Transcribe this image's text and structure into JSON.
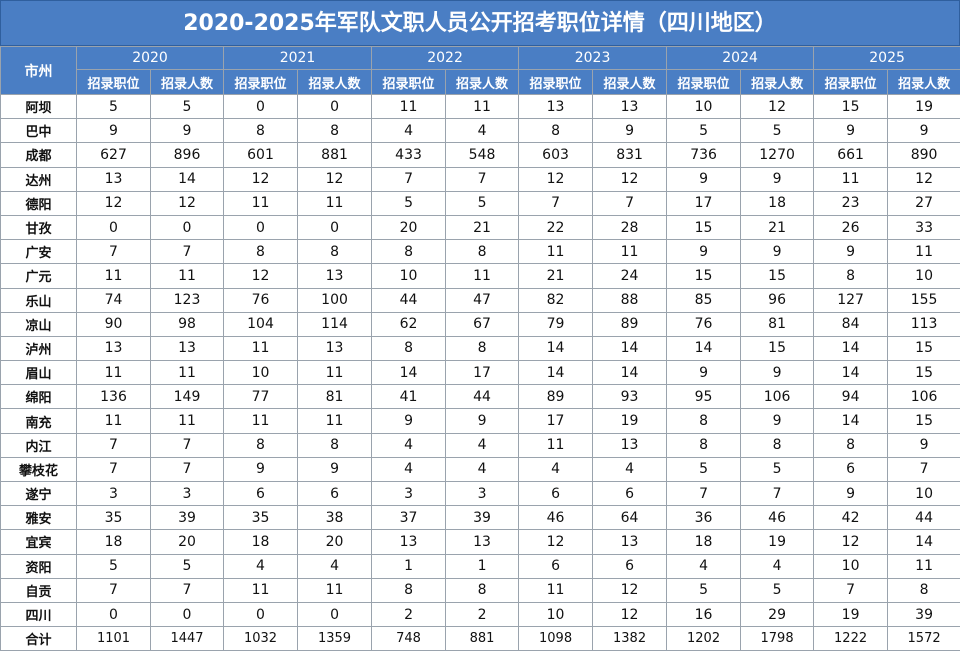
{
  "title": "2020-2025年军队文职人员公开招考职位详情（四川地区）",
  "city_header": "市州",
  "years": [
    "2020",
    "2021",
    "2022",
    "2023",
    "2024",
    "2025"
  ],
  "sub_headers": [
    "招录职位",
    "招录人数"
  ],
  "rows": [
    {
      "city": "阿坝",
      "values": [
        "5",
        "5",
        "0",
        "0",
        "11",
        "11",
        "13",
        "13",
        "10",
        "12",
        "15",
        "19"
      ]
    },
    {
      "city": "巴中",
      "values": [
        "9",
        "9",
        "8",
        "8",
        "4",
        "4",
        "8",
        "9",
        "5",
        "5",
        "9",
        "9"
      ]
    },
    {
      "city": "成都",
      "values": [
        "627",
        "896",
        "601",
        "881",
        "433",
        "548",
        "603",
        "831",
        "736",
        "1270",
        "661",
        "890"
      ]
    },
    {
      "city": "达州",
      "values": [
        "13",
        "14",
        "12",
        "12",
        "7",
        "7",
        "12",
        "12",
        "9",
        "9",
        "11",
        "12"
      ]
    },
    {
      "city": "德阳",
      "values": [
        "12",
        "12",
        "11",
        "11",
        "5",
        "5",
        "7",
        "7",
        "17",
        "18",
        "23",
        "27"
      ]
    },
    {
      "city": "甘孜",
      "values": [
        "0",
        "0",
        "0",
        "0",
        "20",
        "21",
        "22",
        "28",
        "15",
        "21",
        "26",
        "33"
      ]
    },
    {
      "city": "广安",
      "values": [
        "7",
        "7",
        "8",
        "8",
        "8",
        "8",
        "11",
        "11",
        "9",
        "9",
        "9",
        "11"
      ]
    },
    {
      "city": "广元",
      "values": [
        "11",
        "11",
        "12",
        "13",
        "10",
        "11",
        "21",
        "24",
        "15",
        "15",
        "8",
        "10"
      ]
    },
    {
      "city": "乐山",
      "values": [
        "74",
        "123",
        "76",
        "100",
        "44",
        "47",
        "82",
        "88",
        "85",
        "96",
        "127",
        "155"
      ]
    },
    {
      "city": "凉山",
      "values": [
        "90",
        "98",
        "104",
        "114",
        "62",
        "67",
        "79",
        "89",
        "76",
        "81",
        "84",
        "113"
      ]
    },
    {
      "city": "泸州",
      "values": [
        "13",
        "13",
        "11",
        "13",
        "8",
        "8",
        "14",
        "14",
        "14",
        "15",
        "14",
        "15"
      ]
    },
    {
      "city": "眉山",
      "values": [
        "11",
        "11",
        "10",
        "11",
        "14",
        "17",
        "14",
        "14",
        "9",
        "9",
        "14",
        "15"
      ]
    },
    {
      "city": "绵阳",
      "values": [
        "136",
        "149",
        "77",
        "81",
        "41",
        "44",
        "89",
        "93",
        "95",
        "106",
        "94",
        "106"
      ]
    },
    {
      "city": "南充",
      "values": [
        "11",
        "11",
        "11",
        "11",
        "9",
        "9",
        "17",
        "19",
        "8",
        "9",
        "14",
        "15"
      ]
    },
    {
      "city": "内江",
      "values": [
        "7",
        "7",
        "8",
        "8",
        "4",
        "4",
        "11",
        "13",
        "8",
        "8",
        "8",
        "9"
      ]
    },
    {
      "city": "攀枝花",
      "values": [
        "7",
        "7",
        "9",
        "9",
        "4",
        "4",
        "4",
        "4",
        "5",
        "5",
        "6",
        "7"
      ]
    },
    {
      "city": "遂宁",
      "values": [
        "3",
        "3",
        "6",
        "6",
        "3",
        "3",
        "6",
        "6",
        "7",
        "7",
        "9",
        "10"
      ]
    },
    {
      "city": "雅安",
      "values": [
        "35",
        "39",
        "35",
        "38",
        "37",
        "39",
        "46",
        "64",
        "36",
        "46",
        "42",
        "44"
      ]
    },
    {
      "city": "宜宾",
      "values": [
        "18",
        "20",
        "18",
        "20",
        "13",
        "13",
        "12",
        "13",
        "18",
        "19",
        "12",
        "14"
      ]
    },
    {
      "city": "资阳",
      "values": [
        "5",
        "5",
        "4",
        "4",
        "1",
        "1",
        "6",
        "6",
        "4",
        "4",
        "10",
        "11"
      ]
    },
    {
      "city": "自贡",
      "values": [
        "7",
        "7",
        "11",
        "11",
        "8",
        "8",
        "11",
        "12",
        "5",
        "5",
        "7",
        "8"
      ]
    },
    {
      "city": "四川",
      "values": [
        "0",
        "0",
        "0",
        "0",
        "2",
        "2",
        "10",
        "12",
        "16",
        "29",
        "19",
        "39"
      ]
    },
    {
      "city": "合计",
      "values": [
        "1101",
        "1447",
        "1032",
        "1359",
        "748",
        "881",
        "1098",
        "1382",
        "1202",
        "1798",
        "1222",
        "1572"
      ]
    }
  ]
}
